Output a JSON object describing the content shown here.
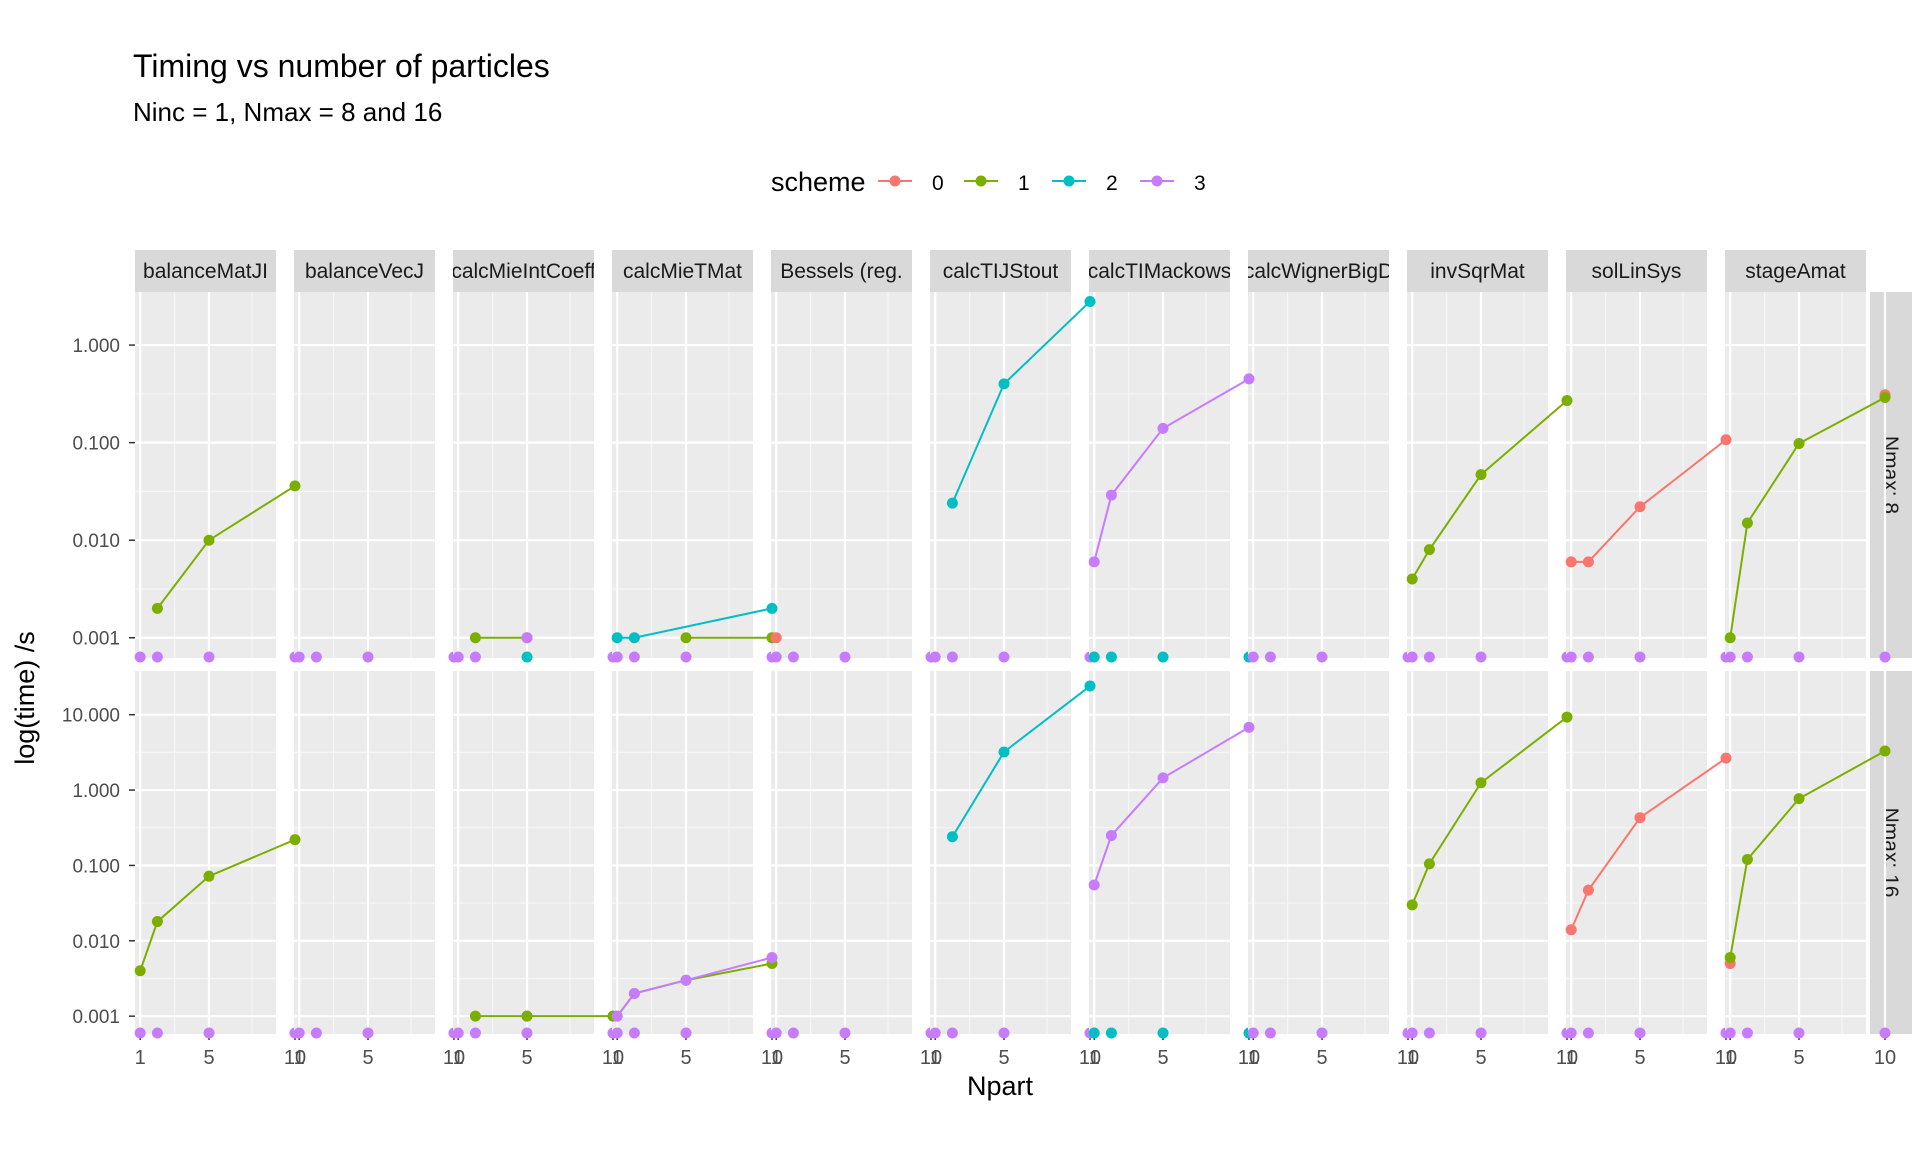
{
  "chart_data": {
    "type": "line",
    "title": "Timing vs number of particles",
    "subtitle": "Ninc = 1, Nmax = 8 and 16",
    "xlabel": "Npart",
    "ylabel": "log(time) /s",
    "y_scale": "log10",
    "x_ticks": [
      1,
      5,
      10
    ],
    "grid": true,
    "legend": {
      "title": "scheme",
      "position": "top",
      "entries": [
        {
          "label": "0",
          "color": "#F8766D"
        },
        {
          "label": "1",
          "color": "#7CAE00"
        },
        {
          "label": "2",
          "color": "#00BFC4"
        },
        {
          "label": "3",
          "color": "#C77CFF"
        }
      ]
    },
    "columns": [
      "balanceMatJI",
      "balanceVecJ",
      "calcMieIntCoeff",
      "calcMieTMat",
      "Bessels (reg.",
      "calcTIJStout",
      "calcTIMackows",
      "calcWignerBigD",
      "invSqrMat",
      "solLinSys",
      "stageAmat"
    ],
    "rows": [
      {
        "label": "Nmax: 8",
        "y_ticks": [
          0.001,
          0.01,
          0.1,
          1
        ],
        "y_tick_labels": [
          "0.001",
          "0.010",
          "0.100",
          "1.000"
        ],
        "ylim": [
          0.00062,
          3.5
        ]
      },
      {
        "label": "Nmax: 16",
        "y_ticks": [
          0.001,
          0.01,
          0.1,
          1,
          10
        ],
        "y_tick_labels": [
          "0.001",
          "0.010",
          "0.100",
          "1.000",
          "10.000"
        ],
        "ylim": [
          0.00058,
          38
        ]
      }
    ],
    "floor_points": [
      [
        [
          [
            1,
            3
          ],
          [
            2,
            3
          ],
          [
            5,
            3
          ],
          [
            10,
            3
          ]
        ],
        [
          [
            1,
            3
          ],
          [
            2,
            3
          ],
          [
            5,
            3
          ],
          [
            10,
            3
          ]
        ],
        [
          [
            1,
            3
          ],
          [
            2,
            3
          ],
          [
            5,
            2
          ],
          [
            10,
            3
          ]
        ],
        [
          [
            1,
            3
          ],
          [
            2,
            3
          ],
          [
            5,
            3
          ],
          [
            10,
            3
          ]
        ],
        [
          [
            1,
            3
          ],
          [
            2,
            3
          ],
          [
            5,
            3
          ],
          [
            10,
            3
          ]
        ],
        [
          [
            1,
            3
          ],
          [
            2,
            3
          ],
          [
            5,
            3
          ],
          [
            10,
            3
          ]
        ],
        [
          [
            1,
            2
          ],
          [
            2,
            2
          ],
          [
            5,
            2
          ],
          [
            10,
            2
          ]
        ],
        [
          [
            1,
            3
          ],
          [
            2,
            3
          ],
          [
            5,
            3
          ],
          [
            10,
            3
          ]
        ],
        [
          [
            1,
            3
          ],
          [
            2,
            3
          ],
          [
            5,
            3
          ],
          [
            10,
            3
          ]
        ],
        [
          [
            1,
            3
          ],
          [
            2,
            3
          ],
          [
            5,
            3
          ],
          [
            10,
            3
          ]
        ],
        [
          [
            1,
            3
          ],
          [
            2,
            3
          ],
          [
            5,
            3
          ],
          [
            10,
            3
          ]
        ]
      ],
      [
        [
          [
            1,
            3
          ],
          [
            2,
            3
          ],
          [
            5,
            3
          ],
          [
            10,
            3
          ]
        ],
        [
          [
            1,
            3
          ],
          [
            2,
            3
          ],
          [
            5,
            3
          ],
          [
            10,
            3
          ]
        ],
        [
          [
            1,
            3
          ],
          [
            2,
            3
          ],
          [
            5,
            3
          ],
          [
            10,
            3
          ]
        ],
        [
          [
            1,
            3
          ],
          [
            2,
            3
          ],
          [
            5,
            3
          ],
          [
            10,
            3
          ]
        ],
        [
          [
            1,
            3
          ],
          [
            2,
            3
          ],
          [
            5,
            3
          ],
          [
            10,
            3
          ]
        ],
        [
          [
            1,
            3
          ],
          [
            2,
            3
          ],
          [
            5,
            3
          ],
          [
            10,
            3
          ]
        ],
        [
          [
            1,
            2
          ],
          [
            2,
            2
          ],
          [
            5,
            2
          ],
          [
            10,
            2
          ]
        ],
        [
          [
            1,
            3
          ],
          [
            2,
            3
          ],
          [
            5,
            3
          ],
          [
            10,
            3
          ]
        ],
        [
          [
            1,
            3
          ],
          [
            2,
            3
          ],
          [
            5,
            3
          ],
          [
            10,
            3
          ]
        ],
        [
          [
            1,
            3
          ],
          [
            2,
            3
          ],
          [
            5,
            3
          ],
          [
            10,
            3
          ]
        ],
        [
          [
            1,
            3
          ],
          [
            2,
            3
          ],
          [
            5,
            3
          ],
          [
            10,
            3
          ]
        ]
      ]
    ],
    "series": [
      {
        "row": 0,
        "col": 0,
        "scheme": "1",
        "x": [
          2,
          5,
          10
        ],
        "y": [
          0.002,
          0.01,
          0.036
        ]
      },
      {
        "row": 0,
        "col": 2,
        "scheme": "1",
        "x": [
          2,
          5
        ],
        "y": [
          0.001,
          0.001
        ]
      },
      {
        "row": 0,
        "col": 2,
        "scheme": "3",
        "x": [
          5
        ],
        "y": [
          0.001
        ]
      },
      {
        "row": 0,
        "col": 3,
        "scheme": "1",
        "x": [
          5,
          10
        ],
        "y": [
          0.001,
          0.001
        ]
      },
      {
        "row": 0,
        "col": 3,
        "scheme": "2",
        "x": [
          1,
          2,
          10
        ],
        "y": [
          0.001,
          0.001,
          0.002
        ]
      },
      {
        "row": 0,
        "col": 4,
        "scheme": "0",
        "x": [
          1
        ],
        "y": [
          0.001
        ]
      },
      {
        "row": 0,
        "col": 5,
        "scheme": "2",
        "x": [
          2,
          5,
          10
        ],
        "y": [
          0.024,
          0.4,
          2.8
        ]
      },
      {
        "row": 0,
        "col": 6,
        "scheme": "3",
        "x": [
          1,
          2,
          5,
          10
        ],
        "y": [
          0.006,
          0.029,
          0.14,
          0.45
        ]
      },
      {
        "row": 0,
        "col": 8,
        "scheme": "1",
        "x": [
          1,
          2,
          5,
          10
        ],
        "y": [
          0.004,
          0.008,
          0.047,
          0.27
        ]
      },
      {
        "row": 0,
        "col": 9,
        "scheme": "0",
        "x": [
          1,
          2,
          5,
          10
        ],
        "y": [
          0.006,
          0.006,
          0.022,
          0.107
        ]
      },
      {
        "row": 0,
        "col": 10,
        "scheme": "0",
        "x": [
          10
        ],
        "y": [
          0.31
        ]
      },
      {
        "row": 0,
        "col": 10,
        "scheme": "1",
        "x": [
          1,
          2,
          5,
          10
        ],
        "y": [
          0.001,
          0.015,
          0.098,
          0.29
        ]
      },
      {
        "row": 1,
        "col": 0,
        "scheme": "1",
        "x": [
          1,
          2,
          5,
          10
        ],
        "y": [
          0.004,
          0.018,
          0.072,
          0.22
        ]
      },
      {
        "row": 1,
        "col": 2,
        "scheme": "0",
        "x": [
          5
        ],
        "y": [
          0.001
        ]
      },
      {
        "row": 1,
        "col": 2,
        "scheme": "1",
        "x": [
          2,
          5,
          10
        ],
        "y": [
          0.001,
          0.001,
          0.001
        ]
      },
      {
        "row": 1,
        "col": 3,
        "scheme": "1",
        "x": [
          1,
          2,
          5,
          10
        ],
        "y": [
          0.001,
          0.002,
          0.003,
          0.005
        ]
      },
      {
        "row": 1,
        "col": 3,
        "scheme": "3",
        "x": [
          1,
          2,
          5,
          10
        ],
        "y": [
          0.001,
          0.002,
          0.003,
          0.006
        ]
      },
      {
        "row": 1,
        "col": 5,
        "scheme": "2",
        "x": [
          2,
          5,
          10
        ],
        "y": [
          0.24,
          3.2,
          24
        ]
      },
      {
        "row": 1,
        "col": 6,
        "scheme": "3",
        "x": [
          1,
          2,
          5,
          10
        ],
        "y": [
          0.055,
          0.25,
          1.45,
          6.8
        ]
      },
      {
        "row": 1,
        "col": 8,
        "scheme": "1",
        "x": [
          1,
          2,
          5,
          10
        ],
        "y": [
          0.03,
          0.105,
          1.25,
          9.3
        ]
      },
      {
        "row": 1,
        "col": 9,
        "scheme": "0",
        "x": [
          1,
          2,
          5,
          10
        ],
        "y": [
          0.014,
          0.047,
          0.43,
          2.65
        ]
      },
      {
        "row": 1,
        "col": 10,
        "scheme": "0",
        "x": [
          1
        ],
        "y": [
          0.005
        ]
      },
      {
        "row": 1,
        "col": 10,
        "scheme": "1",
        "x": [
          1,
          2,
          5,
          10
        ],
        "y": [
          0.006,
          0.12,
          0.77,
          3.3
        ]
      }
    ]
  }
}
